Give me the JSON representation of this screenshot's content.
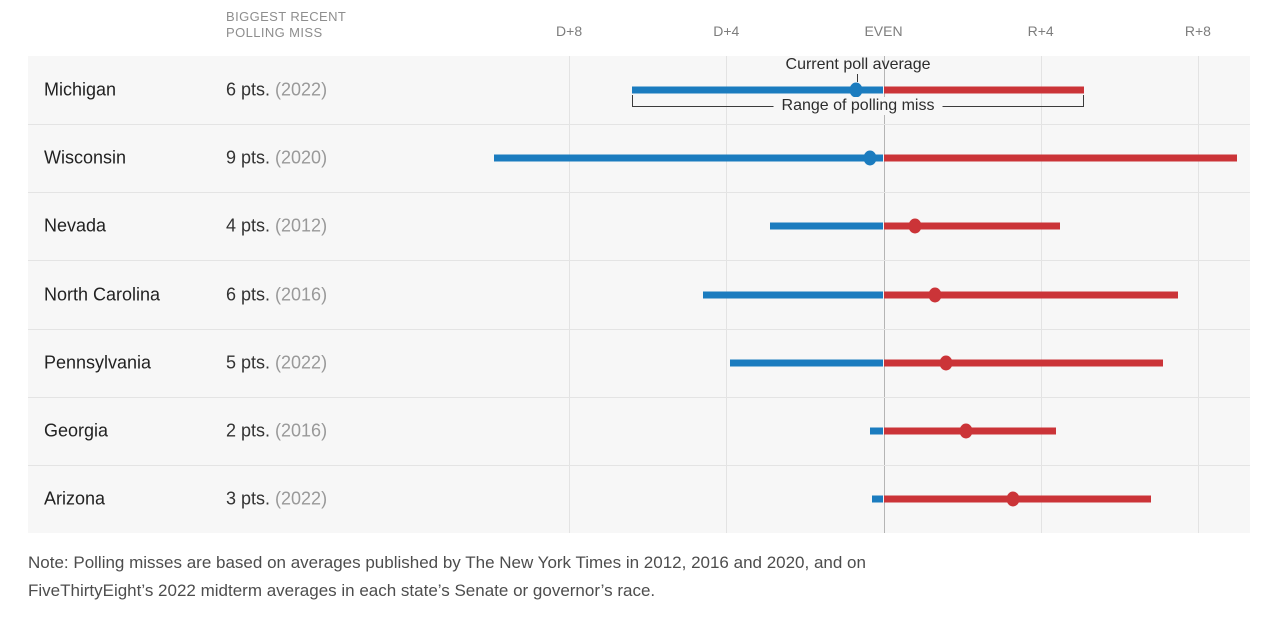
{
  "header": {
    "col_label_line1": "BIGGEST RECENT",
    "col_label_line2": "POLLING MISS"
  },
  "annotations": {
    "current_poll_average": "Current poll average",
    "range_of_polling_miss": "Range of polling miss"
  },
  "note": {
    "line1": "Note: Polling misses are based on averages published by The New York Times in 2012, 2016 and 2020, and on",
    "line2": "FiveThirtyEight’s 2022 midterm averages in each state’s Senate or governor’s race."
  },
  "chart_data": {
    "type": "dot-range",
    "unit": "percentage points (Democratic lead negative, Republican lead positive)",
    "axis_ticks": [
      {
        "value": -8,
        "label": "D+8"
      },
      {
        "value": -4,
        "label": "D+4"
      },
      {
        "value": 0,
        "label": "EVEN"
      },
      {
        "value": 4,
        "label": "R+4"
      },
      {
        "value": 8,
        "label": "R+8"
      }
    ],
    "colors": {
      "dem": "#1b7cbf",
      "rep": "#cb3438"
    },
    "rows": [
      {
        "state": "Michigan",
        "miss": "6 pts.",
        "year": "(2022)",
        "range_lo": -6.4,
        "poll_avg": -0.7,
        "range_hi": 5.1
      },
      {
        "state": "Wisconsin",
        "miss": "9 pts.",
        "year": "(2020)",
        "range_lo": -9.9,
        "poll_avg": -0.35,
        "range_hi": 9.0
      },
      {
        "state": "Nevada",
        "miss": "4 pts.",
        "year": "(2012)",
        "range_lo": -2.9,
        "poll_avg": 0.8,
        "range_hi": 4.5
      },
      {
        "state": "North Carolina",
        "miss": "6 pts.",
        "year": "(2016)",
        "range_lo": -4.6,
        "poll_avg": 1.3,
        "range_hi": 7.5
      },
      {
        "state": "Pennsylvania",
        "miss": "5 pts.",
        "year": "(2022)",
        "range_lo": -3.9,
        "poll_avg": 1.6,
        "range_hi": 7.1
      },
      {
        "state": "Georgia",
        "miss": "2 pts.",
        "year": "(2016)",
        "range_lo": -0.35,
        "poll_avg": 2.1,
        "range_hi": 4.4
      },
      {
        "state": "Arizona",
        "miss": "3 pts.",
        "year": "(2022)",
        "range_lo": -0.3,
        "poll_avg": 3.3,
        "range_hi": 6.8
      }
    ]
  }
}
